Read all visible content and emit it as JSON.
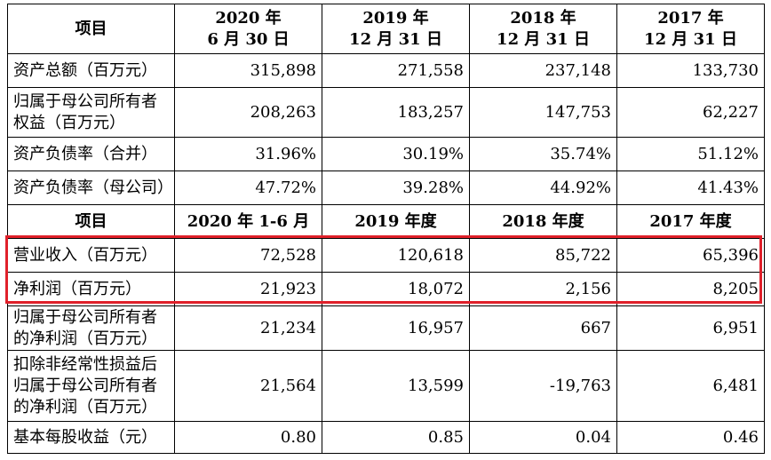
{
  "table": {
    "header1": {
      "label": "项目",
      "cols": [
        [
          "2020 年",
          "6 月 30 日"
        ],
        [
          "2019 年",
          "12 月 31 日"
        ],
        [
          "2018 年",
          "12 月 31 日"
        ],
        [
          "2017 年",
          "12 月 31 日"
        ]
      ]
    },
    "rows1": [
      {
        "label": [
          "资产总额（百万元）"
        ],
        "values": [
          "315,898",
          "271,558",
          "237,148",
          "133,730"
        ]
      },
      {
        "label": [
          "归属于母公司所有者",
          "权益（百万元）"
        ],
        "values": [
          "208,263",
          "183,257",
          "147,753",
          "62,227"
        ]
      },
      {
        "label": [
          "资产负债率（合并）"
        ],
        "values": [
          "31.96%",
          "30.19%",
          "35.74%",
          "51.12%"
        ]
      },
      {
        "label": [
          "资产负债率（母公司）"
        ],
        "values": [
          "47.72%",
          "39.28%",
          "44.92%",
          "41.43%"
        ]
      }
    ],
    "header2": {
      "label": "项目",
      "cols": [
        "2020 年 1-6 月",
        "2019 年度",
        "2018 年度",
        "2017 年度"
      ]
    },
    "rows2": [
      {
        "label": [
          "营业收入（百万元）"
        ],
        "values": [
          "72,528",
          "120,618",
          "85,722",
          "65,396"
        ]
      },
      {
        "label": [
          "净利润（百万元）"
        ],
        "values": [
          "21,923",
          "18,072",
          "2,156",
          "8,205"
        ]
      },
      {
        "label": [
          "归属于母公司所有者",
          "的净利润（百万元）"
        ],
        "values": [
          "21,234",
          "16,957",
          "667",
          "6,951"
        ]
      },
      {
        "label": [
          "扣除非经常性损益后",
          "归属于母公司所有者",
          "的净利润（百万元）"
        ],
        "values": [
          "21,564",
          "13,599",
          "-19,763",
          "6,481"
        ]
      },
      {
        "label": [
          "基本每股收益（元）"
        ],
        "values": [
          "0.80",
          "0.85",
          "0.04",
          "0.46"
        ]
      }
    ]
  },
  "colors": {
    "highlight_border": "#e0202a",
    "grid": "#000000"
  }
}
